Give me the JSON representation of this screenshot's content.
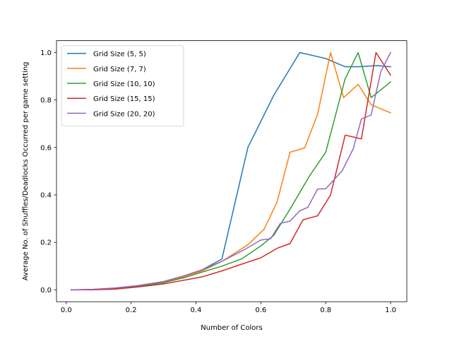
{
  "chart_data": {
    "type": "line",
    "xlabel": "Number of Colors",
    "ylabel": "Average No. of Shuffles/Deadlocks Occurred per game setting",
    "xlim": [
      -0.03,
      1.05
    ],
    "ylim": [
      -0.05,
      1.05
    ],
    "xticks": [
      0.0,
      0.2,
      0.4,
      0.6,
      0.8,
      1.0
    ],
    "xtick_labels": [
      "0.0",
      "0.2",
      "0.4",
      "0.6",
      "0.8",
      "1.0"
    ],
    "yticks": [
      0.0,
      0.2,
      0.4,
      0.6,
      0.8,
      1.0
    ],
    "ytick_labels": [
      "0.0",
      "0.2",
      "0.4",
      "0.6",
      "0.8",
      "1.0"
    ],
    "grid": false,
    "legend_position": "upper-left",
    "series": [
      {
        "name": "Grid Size (5, 5)",
        "color": "#1f77b4",
        "points": [
          [
            0.015,
            0.0
          ],
          [
            0.08,
            0.001
          ],
          [
            0.15,
            0.006
          ],
          [
            0.22,
            0.015
          ],
          [
            0.3,
            0.032
          ],
          [
            0.36,
            0.055
          ],
          [
            0.42,
            0.085
          ],
          [
            0.48,
            0.13
          ],
          [
            0.56,
            0.6
          ],
          [
            0.64,
            0.82
          ],
          [
            0.72,
            1.0
          ],
          [
            0.8,
            0.975
          ],
          [
            0.86,
            0.94
          ],
          [
            0.9,
            0.94
          ],
          [
            0.96,
            0.945
          ],
          [
            1.0,
            0.94
          ]
        ]
      },
      {
        "name": "Grid Size (7, 7)",
        "color": "#ff7f0e",
        "points": [
          [
            0.015,
            0.0
          ],
          [
            0.08,
            0.002
          ],
          [
            0.15,
            0.006
          ],
          [
            0.22,
            0.015
          ],
          [
            0.3,
            0.032
          ],
          [
            0.36,
            0.055
          ],
          [
            0.42,
            0.08
          ],
          [
            0.48,
            0.12
          ],
          [
            0.56,
            0.19
          ],
          [
            0.61,
            0.255
          ],
          [
            0.65,
            0.37
          ],
          [
            0.69,
            0.58
          ],
          [
            0.735,
            0.598
          ],
          [
            0.775,
            0.74
          ],
          [
            0.815,
            1.0
          ],
          [
            0.855,
            0.81
          ],
          [
            0.9,
            0.866
          ],
          [
            0.94,
            0.78
          ],
          [
            1.0,
            0.746
          ]
        ]
      },
      {
        "name": "Grid Size (10, 10)",
        "color": "#2ca02c",
        "points": [
          [
            0.015,
            0.0
          ],
          [
            0.08,
            0.001
          ],
          [
            0.15,
            0.005
          ],
          [
            0.22,
            0.014
          ],
          [
            0.3,
            0.03
          ],
          [
            0.36,
            0.05
          ],
          [
            0.42,
            0.075
          ],
          [
            0.48,
            0.1
          ],
          [
            0.54,
            0.13
          ],
          [
            0.6,
            0.185
          ],
          [
            0.64,
            0.23
          ],
          [
            0.69,
            0.34
          ],
          [
            0.75,
            0.48
          ],
          [
            0.8,
            0.58
          ],
          [
            0.86,
            0.89
          ],
          [
            0.9,
            1.0
          ],
          [
            0.94,
            0.81
          ],
          [
            1.0,
            0.876
          ]
        ]
      },
      {
        "name": "Grid Size (15, 15)",
        "color": "#d62728",
        "points": [
          [
            0.015,
            0.0
          ],
          [
            0.08,
            0.0
          ],
          [
            0.15,
            0.003
          ],
          [
            0.22,
            0.012
          ],
          [
            0.3,
            0.025
          ],
          [
            0.36,
            0.04
          ],
          [
            0.42,
            0.055
          ],
          [
            0.48,
            0.08
          ],
          [
            0.54,
            0.108
          ],
          [
            0.6,
            0.135
          ],
          [
            0.65,
            0.175
          ],
          [
            0.69,
            0.195
          ],
          [
            0.73,
            0.295
          ],
          [
            0.775,
            0.312
          ],
          [
            0.815,
            0.4
          ],
          [
            0.86,
            0.652
          ],
          [
            0.91,
            0.636
          ],
          [
            0.955,
            1.0
          ],
          [
            1.0,
            0.905
          ]
        ]
      },
      {
        "name": "Grid Size (20, 20)",
        "color": "#9467bd",
        "points": [
          [
            0.015,
            0.0
          ],
          [
            0.08,
            0.002
          ],
          [
            0.15,
            0.008
          ],
          [
            0.22,
            0.018
          ],
          [
            0.3,
            0.035
          ],
          [
            0.36,
            0.058
          ],
          [
            0.42,
            0.085
          ],
          [
            0.48,
            0.12
          ],
          [
            0.55,
            0.17
          ],
          [
            0.6,
            0.21
          ],
          [
            0.63,
            0.215
          ],
          [
            0.66,
            0.28
          ],
          [
            0.69,
            0.29
          ],
          [
            0.72,
            0.333
          ],
          [
            0.745,
            0.348
          ],
          [
            0.775,
            0.425
          ],
          [
            0.8,
            0.426
          ],
          [
            0.85,
            0.5
          ],
          [
            0.885,
            0.595
          ],
          [
            0.91,
            0.72
          ],
          [
            0.94,
            0.737
          ],
          [
            0.97,
            0.92
          ],
          [
            1.0,
            1.0
          ]
        ]
      }
    ]
  }
}
